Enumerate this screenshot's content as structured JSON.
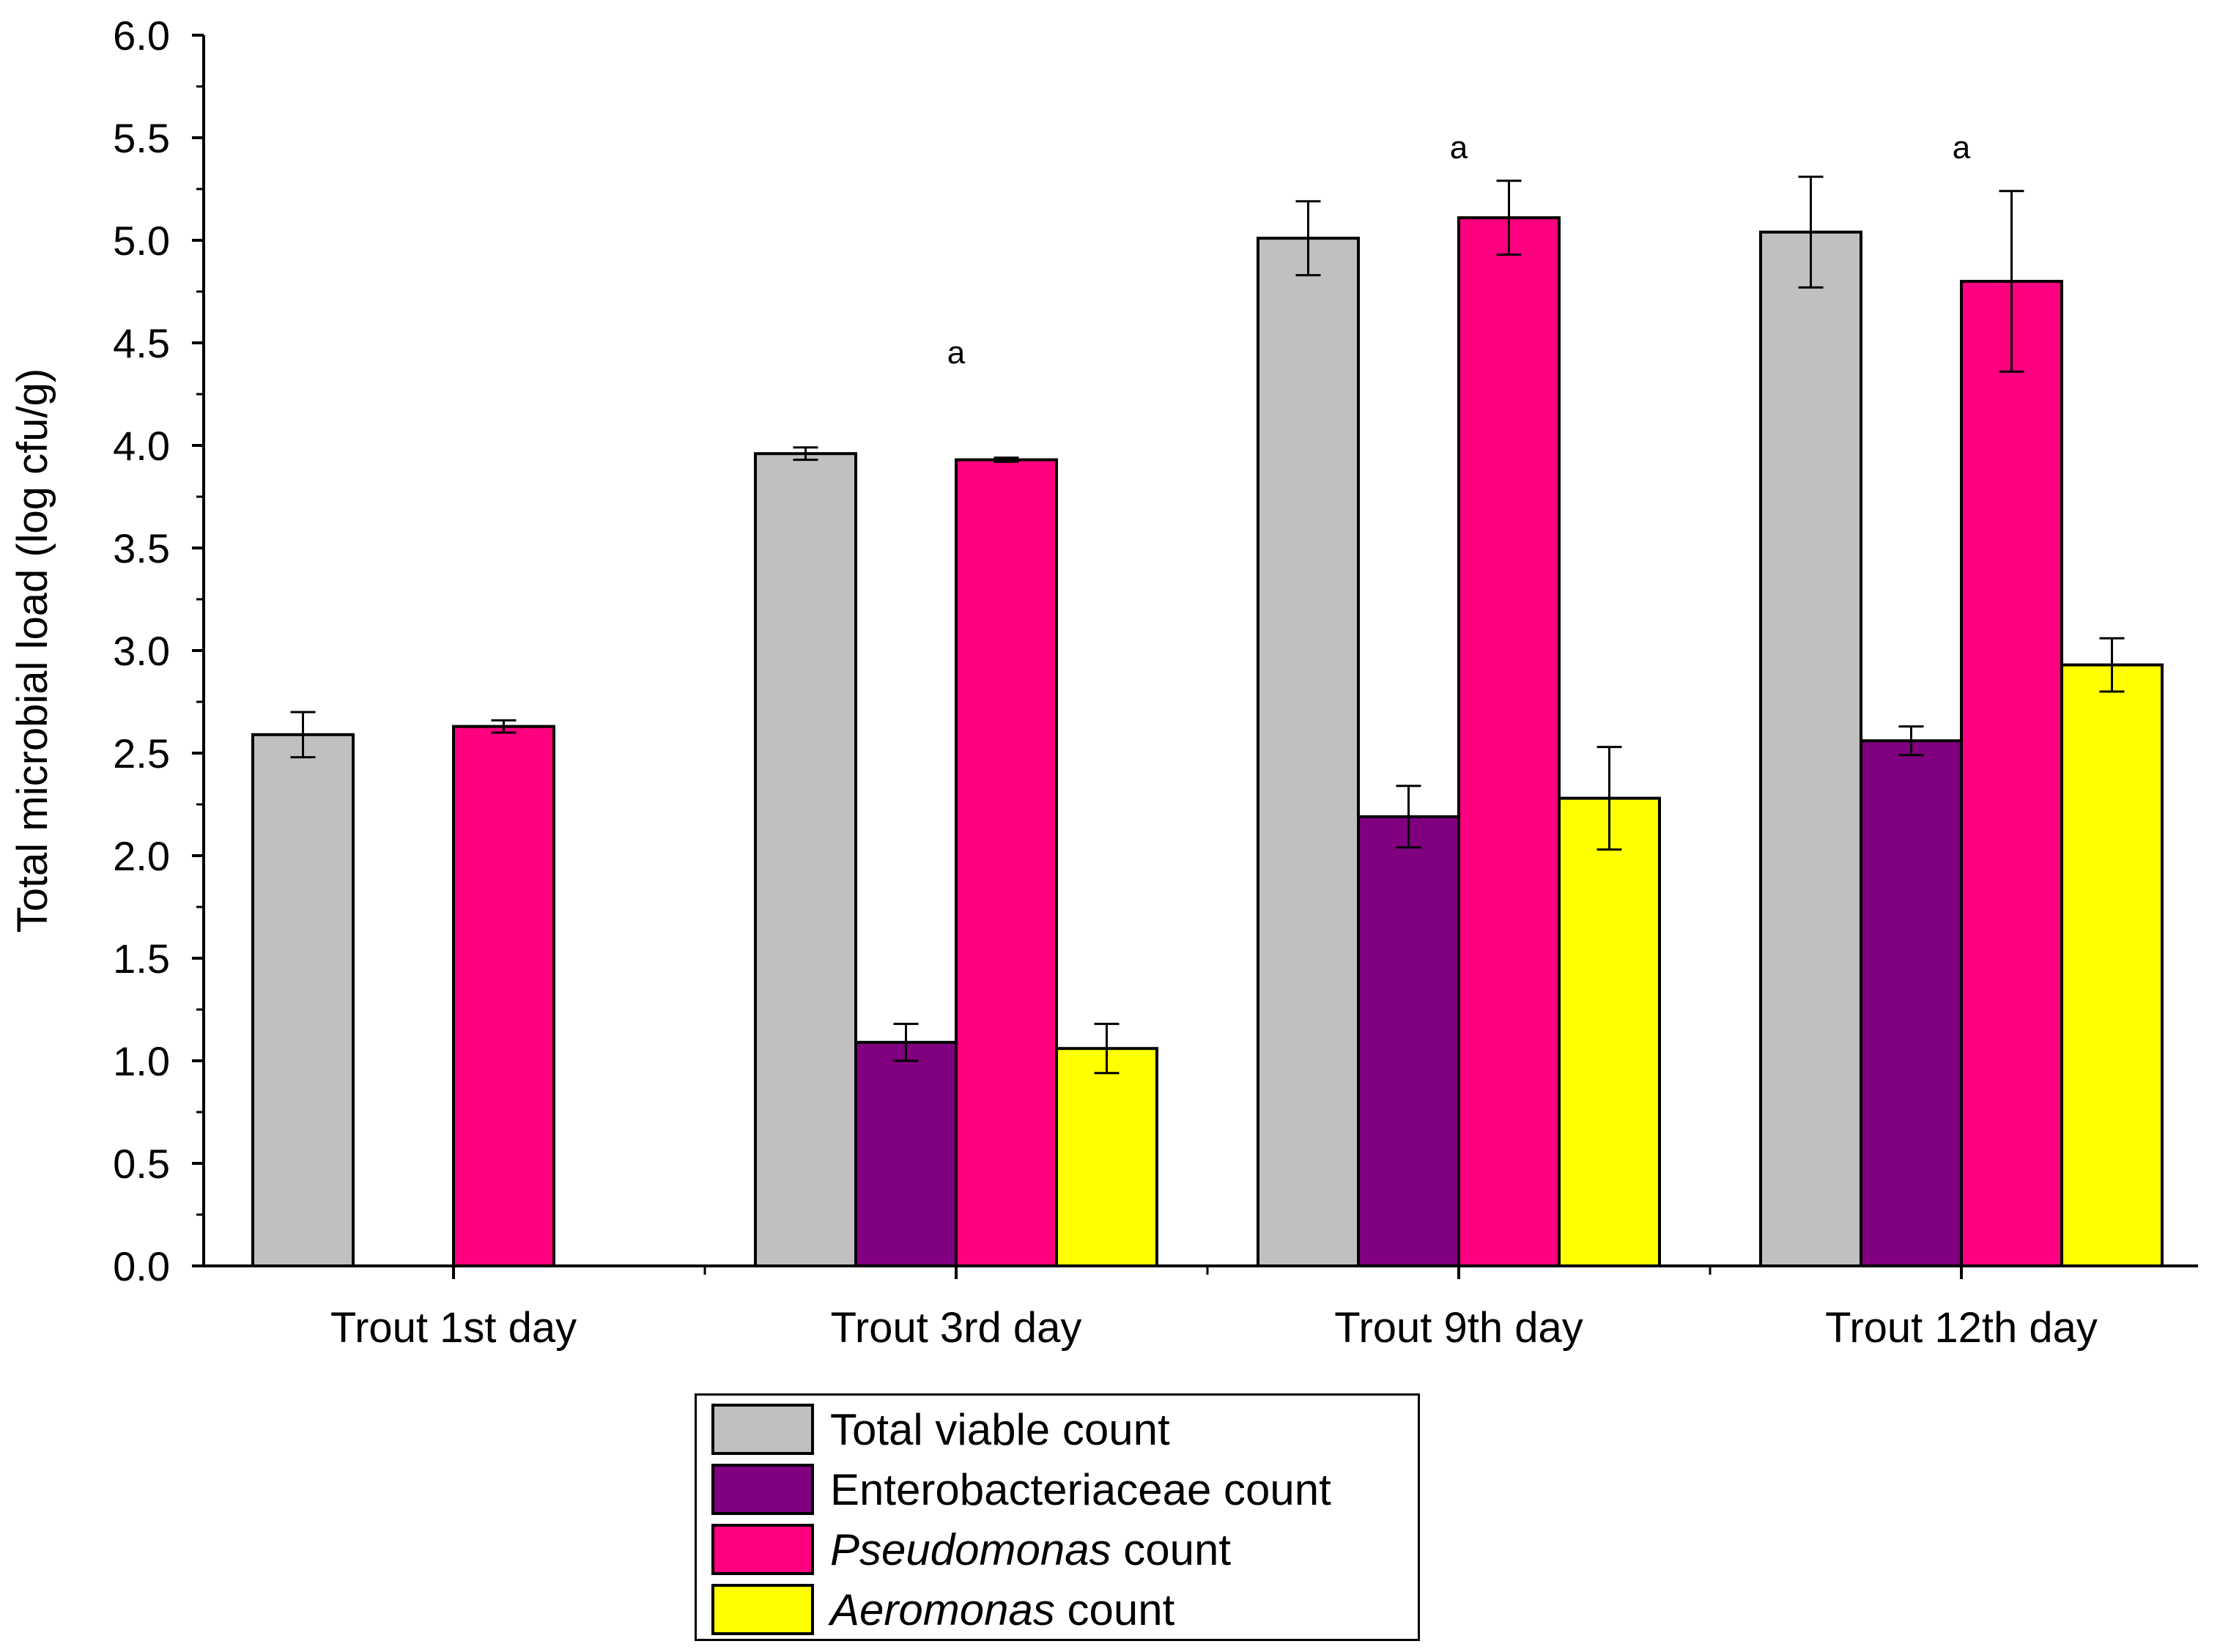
{
  "chart_data": {
    "type": "bar",
    "title": "",
    "xlabel": "",
    "ylabel": "Total microbial load (log cfu/g)",
    "ylim": [
      0,
      6.0
    ],
    "yticks": [
      "0.0",
      "0.5",
      "1.0",
      "1.5",
      "2.0",
      "2.5",
      "3.0",
      "3.5",
      "4.0",
      "4.5",
      "5.0",
      "5.5",
      "6.0"
    ],
    "categories": [
      "Trout 1st day",
      "Trout 3rd day",
      "Trout 9th day",
      "Trout 12th day"
    ],
    "series": [
      {
        "name": "Total viable count",
        "label_italic": "",
        "label_rest": "Total viable count",
        "color": "#c0c0c0",
        "values": [
          2.59,
          3.96,
          5.01,
          5.04
        ],
        "errors": [
          0.11,
          0.03,
          0.18,
          0.27
        ]
      },
      {
        "name": "Enterobacteriaceae count",
        "label_italic": "",
        "label_rest": "Enterobacteriaceae  count",
        "color": "#800080",
        "values": [
          null,
          1.09,
          2.19,
          2.56
        ],
        "errors": [
          null,
          0.09,
          0.15,
          0.07
        ]
      },
      {
        "name": "Pseudomonas count",
        "label_italic": "Pseudomonas",
        "label_rest": " count",
        "color": "#ff0080",
        "values": [
          2.63,
          3.93,
          5.11,
          4.8
        ],
        "errors": [
          0.03,
          0.01,
          0.18,
          0.44
        ]
      },
      {
        "name": "Aeromonas count",
        "label_italic": "Aeromonas",
        "label_rest": " count",
        "color": "#ffff00",
        "values": [
          null,
          1.06,
          2.28,
          2.93
        ],
        "errors": [
          null,
          0.12,
          0.25,
          0.13
        ]
      }
    ],
    "annotations": [
      {
        "text": "a",
        "category": "Trout 3rd day",
        "y": 4.45
      },
      {
        "text": "a",
        "category": "Trout 9th day",
        "y": 5.45
      },
      {
        "text": "a",
        "category": "Trout 12th day",
        "y": 5.45
      }
    ],
    "legend_position": "bottom-center",
    "grid": false
  }
}
